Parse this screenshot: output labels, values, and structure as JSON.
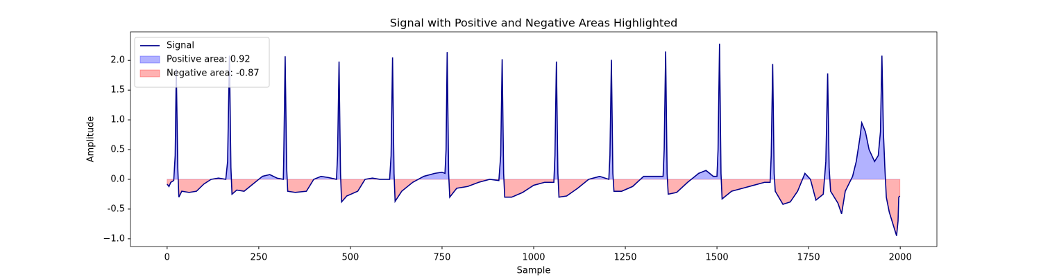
{
  "chart_data": {
    "type": "line",
    "title": "Signal with Positive and Negative Areas Highlighted",
    "xlabel": "Sample",
    "ylabel": "Amplitude",
    "x": [
      0,
      5,
      10,
      18,
      22,
      25,
      29,
      32,
      40,
      60,
      80,
      100,
      120,
      140,
      160,
      165,
      170,
      174,
      177,
      190,
      210,
      240,
      260,
      280,
      300,
      317,
      318,
      322,
      326,
      329,
      350,
      380,
      400,
      420,
      440,
      462,
      465,
      469,
      473,
      476,
      490,
      520,
      540,
      560,
      580,
      607,
      611,
      615,
      619,
      622,
      640,
      670,
      700,
      730,
      750,
      758,
      761,
      764,
      768,
      771,
      790,
      820,
      850,
      880,
      905,
      910,
      914,
      918,
      921,
      940,
      970,
      1000,
      1030,
      1055,
      1058,
      1062,
      1066,
      1069,
      1090,
      1120,
      1150,
      1180,
      1205,
      1208,
      1212,
      1216,
      1219,
      1240,
      1270,
      1300,
      1330,
      1353,
      1356,
      1360,
      1364,
      1367,
      1390,
      1420,
      1450,
      1470,
      1490,
      1500,
      1503,
      1507,
      1511,
      1514,
      1540,
      1570,
      1600,
      1630,
      1645,
      1648,
      1652,
      1656,
      1659,
      1680,
      1700,
      1720,
      1740,
      1755,
      1770,
      1790,
      1797,
      1802,
      1806,
      1810,
      1830,
      1840,
      1850,
      1870,
      1880,
      1890,
      1895,
      1905,
      1915,
      1930,
      1940,
      1946,
      1950,
      1954,
      1958,
      1962,
      1970,
      1980,
      1990,
      1994,
      1996,
      1999
    ],
    "series": [
      {
        "name": "Signal",
        "color": "#00008b",
        "values": [
          -0.08,
          -0.12,
          -0.05,
          -0.02,
          0.4,
          1.85,
          0.2,
          -0.3,
          -0.2,
          -0.22,
          -0.2,
          -0.08,
          0.0,
          0.02,
          0.0,
          0.3,
          2.08,
          0.2,
          -0.25,
          -0.18,
          -0.2,
          -0.05,
          0.05,
          0.08,
          0.02,
          0.0,
          0.3,
          2.07,
          0.2,
          -0.2,
          -0.22,
          -0.2,
          0.0,
          0.05,
          0.03,
          0.0,
          0.4,
          1.98,
          0.1,
          -0.38,
          -0.28,
          -0.2,
          0.0,
          0.02,
          0.0,
          0.0,
          0.4,
          2.05,
          0.1,
          -0.37,
          -0.2,
          -0.05,
          0.05,
          0.1,
          0.12,
          0.1,
          0.5,
          2.14,
          0.1,
          -0.3,
          -0.15,
          -0.12,
          -0.05,
          0.0,
          -0.02,
          0.4,
          2.02,
          0.1,
          -0.3,
          -0.3,
          -0.22,
          -0.1,
          -0.05,
          -0.05,
          0.4,
          1.98,
          0.1,
          -0.3,
          -0.28,
          -0.15,
          0.0,
          0.05,
          0.0,
          0.4,
          2.01,
          0.1,
          -0.2,
          -0.2,
          -0.12,
          0.05,
          0.05,
          0.05,
          0.5,
          2.15,
          0.1,
          -0.25,
          -0.22,
          -0.05,
          0.1,
          0.15,
          0.05,
          0.05,
          0.5,
          2.28,
          0.1,
          -0.33,
          -0.2,
          -0.15,
          -0.1,
          -0.05,
          -0.05,
          0.4,
          1.94,
          0.1,
          -0.2,
          -0.42,
          -0.38,
          -0.2,
          0.1,
          0.0,
          -0.35,
          -0.25,
          0.3,
          1.78,
          0.2,
          -0.2,
          -0.4,
          -0.58,
          -0.2,
          0.05,
          0.3,
          0.7,
          0.95,
          0.8,
          0.5,
          0.3,
          0.4,
          0.8,
          2.08,
          0.8,
          0.2,
          -0.3,
          -0.55,
          -0.75,
          -0.95,
          -0.7,
          -0.3,
          -0.28
        ]
      }
    ],
    "fills": [
      {
        "name": "Positive area: 0.92",
        "color": "#0000ff",
        "side": "positive"
      },
      {
        "name": "Negative area: -0.87",
        "color": "#ff0000",
        "side": "negative"
      }
    ],
    "xlim": [
      -100,
      2100
    ],
    "xticks": [
      0,
      250,
      500,
      750,
      1000,
      1250,
      1500,
      1750,
      2000
    ],
    "ylim": [
      -1.13,
      2.48
    ],
    "yticks": [
      {
        "value": -1,
        "label": "−1.0"
      },
      -0.5,
      {
        "value": 0,
        "label": "0.0"
      },
      0.5,
      {
        "value": 1,
        "label": "1.0"
      },
      1.5,
      {
        "value": 2,
        "label": "2.0"
      }
    ],
    "grid": false,
    "legend": "upper-left"
  }
}
